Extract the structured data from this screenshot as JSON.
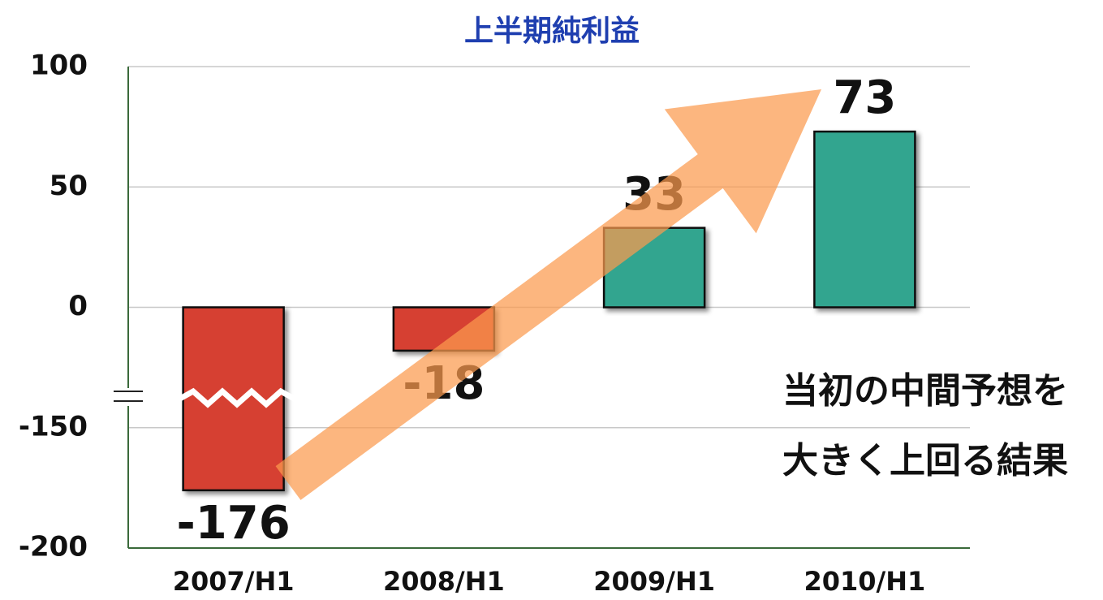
{
  "chart_data": {
    "type": "bar",
    "title": "上半期純利益",
    "categories": [
      "2007/H1",
      "2008/H1",
      "2009/H1",
      "2010/H1"
    ],
    "values": [
      -176,
      -18,
      33,
      73
    ],
    "colors": [
      "#d64030",
      "#d64030",
      "#33a58f",
      "#33a58f"
    ],
    "ylim": [
      -200,
      100
    ],
    "yticks": [
      -200,
      -150,
      0,
      50,
      100
    ],
    "grid": true,
    "annotation": [
      "当初の中間予想を",
      "大きく上回る結果"
    ]
  }
}
